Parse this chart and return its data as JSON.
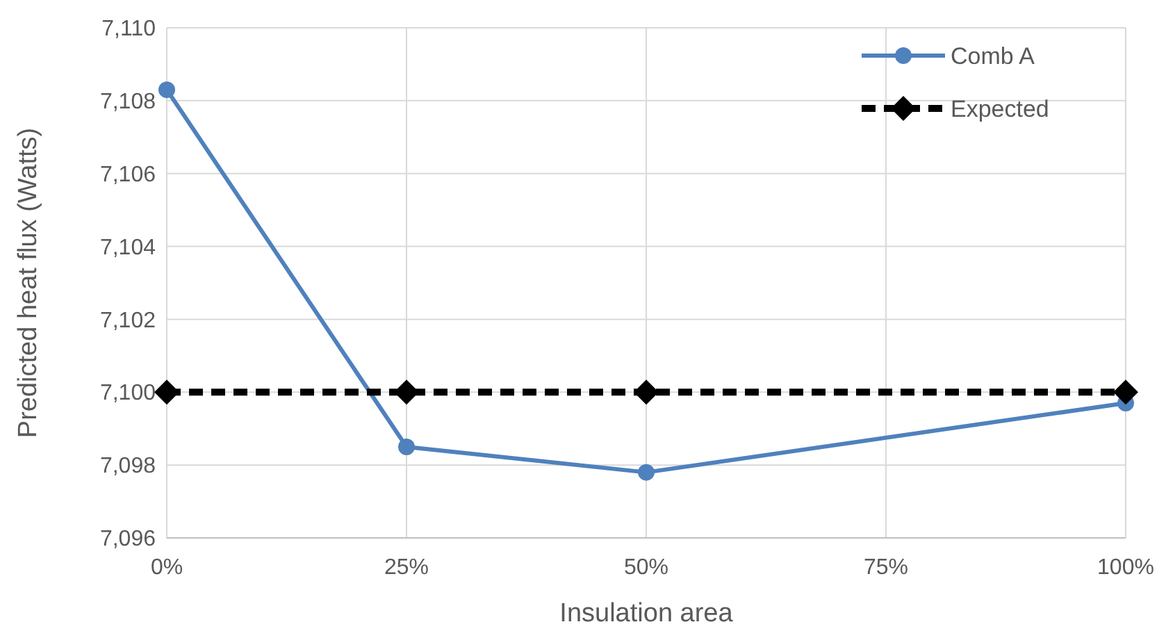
{
  "chart_data": {
    "type": "line",
    "xlabel": "Insulation area",
    "ylabel": "Predicted heat flux (Watts)",
    "x": [
      0,
      25,
      50,
      100
    ],
    "series": [
      {
        "name": "Comb A",
        "color": "#4f81bd",
        "values": [
          7108.3,
          7098.5,
          7097.8,
          7099.7
        ],
        "marker": "circle",
        "line_style": "solid"
      },
      {
        "name": "Expected",
        "color": "#000000",
        "values": [
          7100,
          7100,
          7100,
          7100
        ],
        "marker": "diamond",
        "line_style": "dashed"
      }
    ],
    "xlim": [
      0,
      100
    ],
    "xticks": [
      {
        "value": 0,
        "label": "0%"
      },
      {
        "value": 25,
        "label": "25%"
      },
      {
        "value": 50,
        "label": "50%"
      },
      {
        "value": 75,
        "label": "75%"
      },
      {
        "value": 100,
        "label": "100%"
      }
    ],
    "ylim": [
      7096,
      7110
    ],
    "yticks": [
      {
        "value": 7096,
        "label": "7,096"
      },
      {
        "value": 7098,
        "label": "7,098"
      },
      {
        "value": 7100,
        "label": "7,100"
      },
      {
        "value": 7102,
        "label": "7,102"
      },
      {
        "value": 7104,
        "label": "7,104"
      },
      {
        "value": 7106,
        "label": "7,106"
      },
      {
        "value": 7108,
        "label": "7,108"
      },
      {
        "value": 7110,
        "label": "7,110"
      }
    ],
    "grid": true,
    "legend": "top right"
  }
}
